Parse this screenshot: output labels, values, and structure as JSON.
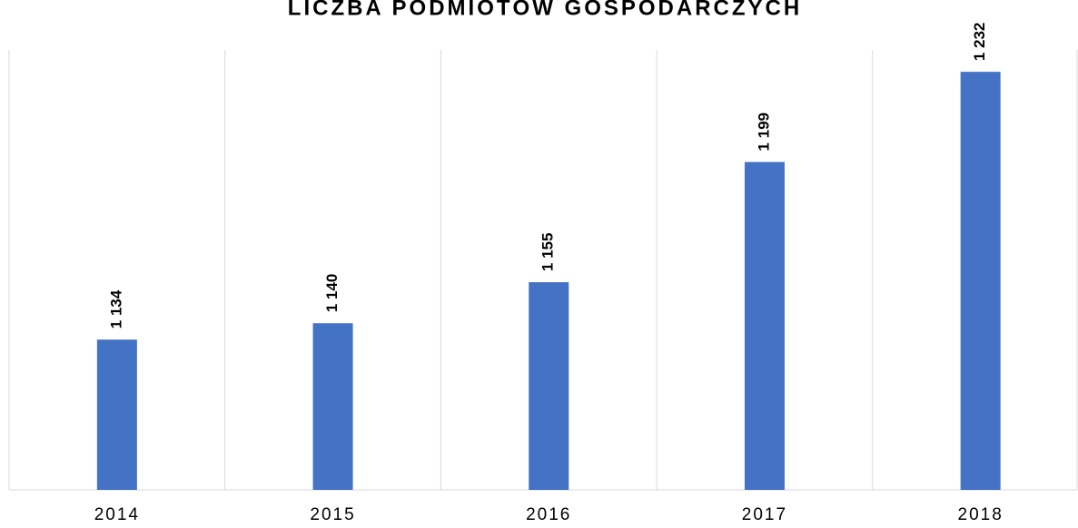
{
  "chart_data": {
    "type": "bar",
    "title": "LICZBA PODMIOTÓW GOSPODARCZYCH",
    "categories": [
      "2014",
      "2015",
      "2016",
      "2017",
      "2018"
    ],
    "values": [
      1134,
      1140,
      1155,
      1199,
      1232
    ],
    "value_labels": [
      "1 134",
      "1 140",
      "1 155",
      "1 199",
      "1 232"
    ],
    "color": "#4472c4",
    "ylim": [
      1079,
      1245
    ]
  }
}
